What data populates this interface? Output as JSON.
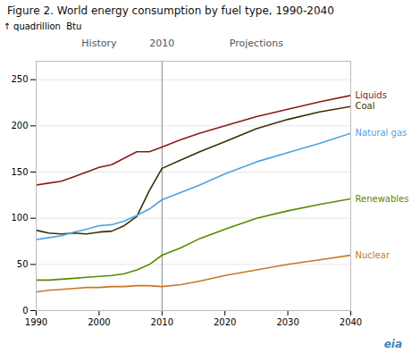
{
  "chart_data": {
    "type": "line",
    "title": "Figure 2. World energy consumption by fuel type, 1990-2040",
    "ylabel": "quadrillion  Btu",
    "x": [
      1990,
      1992,
      1994,
      1996,
      1998,
      2000,
      2002,
      2004,
      2006,
      2008,
      2010,
      2013,
      2016,
      2020,
      2025,
      2030,
      2035,
      2040
    ],
    "series": [
      {
        "name": "Liquids",
        "color": "#8B1A1A",
        "values": [
          136,
          138,
          140,
          145,
          150,
          155,
          158,
          165,
          172,
          172,
          177,
          185,
          192,
          200,
          210,
          218,
          226,
          233
        ]
      },
      {
        "name": "Coal",
        "color": "#3B3000",
        "values": [
          87,
          84,
          83,
          84,
          83,
          85,
          86,
          92,
          102,
          130,
          154,
          163,
          172,
          183,
          197,
          207,
          215,
          221
        ]
      },
      {
        "name": "Natural gas",
        "color": "#4ba3e3",
        "values": [
          77,
          79,
          81,
          85,
          88,
          92,
          93,
          97,
          103,
          110,
          120,
          128,
          136,
          148,
          161,
          171,
          181,
          192
        ]
      },
      {
        "name": "Renewables",
        "color": "#5a8a00",
        "values": [
          33,
          33,
          34,
          35,
          36,
          37,
          38,
          40,
          44,
          50,
          60,
          68,
          78,
          88,
          100,
          108,
          115,
          121
        ]
      },
      {
        "name": "Nuclear",
        "color": "#c87820",
        "values": [
          20,
          22,
          23,
          24,
          25,
          25,
          26,
          26,
          27,
          27,
          26,
          28,
          32,
          38,
          44,
          50,
          55,
          60
        ]
      }
    ],
    "xlim": [
      1990,
      2040
    ],
    "xticks": [
      1990,
      2000,
      2010,
      2020,
      2030,
      2040
    ],
    "ylim": [
      0,
      270
    ],
    "yticks": [
      0,
      50,
      100,
      150,
      200,
      250
    ],
    "grid": "y",
    "divider": {
      "x": 2010,
      "label": "2010"
    },
    "annotations": {
      "history": "History",
      "projections": "Projections",
      "logo": "eia"
    }
  }
}
